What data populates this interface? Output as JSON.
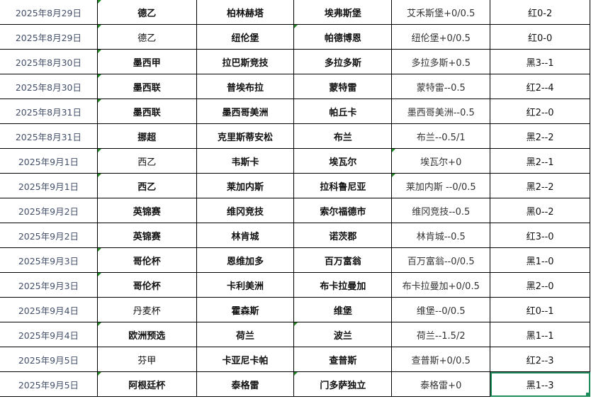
{
  "sheet": {
    "rows": [
      {
        "date": "2025年8月29日",
        "league": "德乙",
        "league_bold": true,
        "home": "柏林赫塔",
        "away": "埃弗斯堡",
        "handicap": "艾禾斯堡+0/0.5",
        "result": "红0-2",
        "markers": [
          "league"
        ]
      },
      {
        "date": "2025年8月29日",
        "league": "德乙",
        "league_bold": false,
        "home": "纽伦堡",
        "away": "帕德博恩",
        "handicap": "纽伦堡+0/0.5",
        "result": "红0-0",
        "markers": [
          "league",
          "away"
        ]
      },
      {
        "date": "2025年8月30日",
        "league": "墨西甲",
        "league_bold": true,
        "home": "拉巴斯竞技",
        "away": "多拉多斯",
        "handicap": "多拉多斯+0.5",
        "result": "黑3--1",
        "markers": [
          "league"
        ]
      },
      {
        "date": "2025年8月30日",
        "league": "墨西联",
        "league_bold": true,
        "home": "普埃布拉",
        "away": "蒙特雷",
        "handicap": "蒙特雷--0.5",
        "result": "红2--4",
        "markers": [
          "league"
        ]
      },
      {
        "date": "2025年8月31日",
        "league": "墨西联",
        "league_bold": true,
        "home": "墨西哥美洲",
        "away": "帕丘卡",
        "handicap": "墨西哥美洲--0.5",
        "result": "红2--0",
        "markers": [
          "league"
        ]
      },
      {
        "date": "2025年8月31日",
        "league": "挪超",
        "league_bold": true,
        "home": "克里斯蒂安松",
        "away": "布兰",
        "handicap": "布兰--0.5/1",
        "result": "黑2--2",
        "markers": []
      },
      {
        "date": "2025年9月1日",
        "league": "西乙",
        "league_bold": false,
        "home": "韦斯卡",
        "away": "埃瓦尔",
        "handicap": "埃瓦尔+0",
        "result": "黑2--1",
        "markers": [
          "league",
          "handicap"
        ]
      },
      {
        "date": "2025年9月1日",
        "league": "西乙",
        "league_bold": true,
        "home": "莱加内斯",
        "away": "拉科鲁尼亚",
        "handicap": "莱加内斯 --0/0.5",
        "result": "黑2--2",
        "markers": [
          "league",
          "handicap"
        ]
      },
      {
        "date": "2025年9月2日",
        "league": "英锦赛",
        "league_bold": true,
        "home": "维冈竞技",
        "away": "索尔福德市",
        "handicap": "维冈竞技--0.5",
        "result": "黑0--2",
        "markers": []
      },
      {
        "date": "2025年9月2日",
        "league": "英锦赛",
        "league_bold": true,
        "home": "林肯城",
        "away": "诺茨郡",
        "handicap": "林肯城--0.5",
        "result": "红3--0",
        "markers": []
      },
      {
        "date": "2025年9月3日",
        "league": "哥伦杯",
        "league_bold": true,
        "home": "恩维加多",
        "away": "百万富翁",
        "handicap": "百万富翁--0/0.5",
        "result": "黑1--0",
        "markers": [
          "league"
        ]
      },
      {
        "date": "2025年9月3日",
        "league": "哥伦杯",
        "league_bold": true,
        "home": "卡利美洲",
        "away": "布卡拉曼加",
        "handicap": "布卡拉曼加+0/0.5",
        "result": "黑2--0",
        "markers": [
          "league"
        ]
      },
      {
        "date": "2025年9月4日",
        "league": "丹麦杯",
        "league_bold": false,
        "home": "霍森斯",
        "away": "维堡",
        "handicap": "维堡--0/0.5",
        "result": "红0--1",
        "markers": []
      },
      {
        "date": "2025年9月4日",
        "league": "欧洲预选",
        "league_bold": true,
        "home": "荷兰",
        "away": "波兰",
        "handicap": "荷兰--1.5/2",
        "result": "黑1--1",
        "markers": [
          "league",
          "away"
        ]
      },
      {
        "date": "2025年9月5日",
        "league": "芬甲",
        "league_bold": false,
        "home": "卡亚尼卡帕",
        "away": "查普斯",
        "handicap": "查普斯+0/0.5",
        "result": "红2--3",
        "markers": []
      },
      {
        "date": "2025年9月5日",
        "league": "阿根廷杯",
        "league_bold": true,
        "home": "泰格雷",
        "away": "门多萨独立",
        "handicap": "泰格雷+0",
        "result": "黑1--3",
        "markers": [
          "league",
          "away"
        ],
        "selected": true
      }
    ],
    "colors": {
      "selection": "#1e8c5a",
      "comment_marker": "#1f8a1f"
    }
  }
}
